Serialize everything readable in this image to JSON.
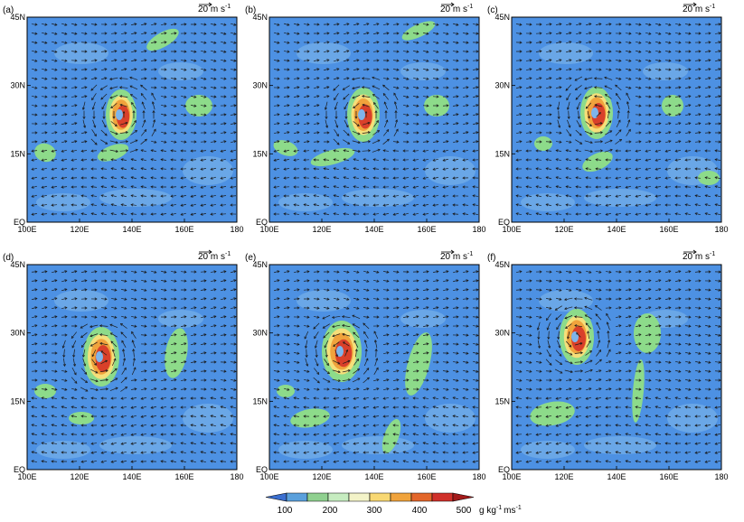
{
  "figure": {
    "panels": [
      {
        "label": "(a)",
        "scale_text": "20 m s",
        "scale_sup": "-1"
      },
      {
        "label": "(b)",
        "scale_text": "20 m s",
        "scale_sup": "-1"
      },
      {
        "label": "(c)",
        "scale_text": "20 m s",
        "scale_sup": "-1"
      },
      {
        "label": "(d)",
        "scale_text": "20 m s",
        "scale_sup": "-1"
      },
      {
        "label": "(e)",
        "scale_text": "20 m s",
        "scale_sup": "-1"
      },
      {
        "label": "(f)",
        "scale_text": "20 m s",
        "scale_sup": "-1"
      }
    ],
    "lat_ticks": [
      "45N",
      "30N",
      "15N",
      "EQ"
    ],
    "lon_ticks": [
      "100E",
      "120E",
      "140E",
      "160E",
      "180"
    ],
    "colorbar": {
      "tick_labels": [
        "100",
        "200",
        "300",
        "400",
        "500"
      ],
      "unit_main": "g kg",
      "unit_sup1": "-1",
      "unit_mid": "ms",
      "unit_sup2": "-1",
      "colors": [
        "#3b6fd0",
        "#5aa0dc",
        "#8fd08f",
        "#c6ecc0",
        "#f3f3c8",
        "#f8d873",
        "#f0a33c",
        "#e3662a",
        "#d0302a",
        "#a31a1a"
      ]
    },
    "colors": {
      "background": "#4d91e3",
      "light": "#7fb5ea",
      "green": "#8ddb8a",
      "yellow": "#f5df7a",
      "orange": "#f0a33c",
      "red": "#d9402a",
      "darkred": "#a31a1a",
      "arrow": "#1a1a1a"
    }
  }
}
